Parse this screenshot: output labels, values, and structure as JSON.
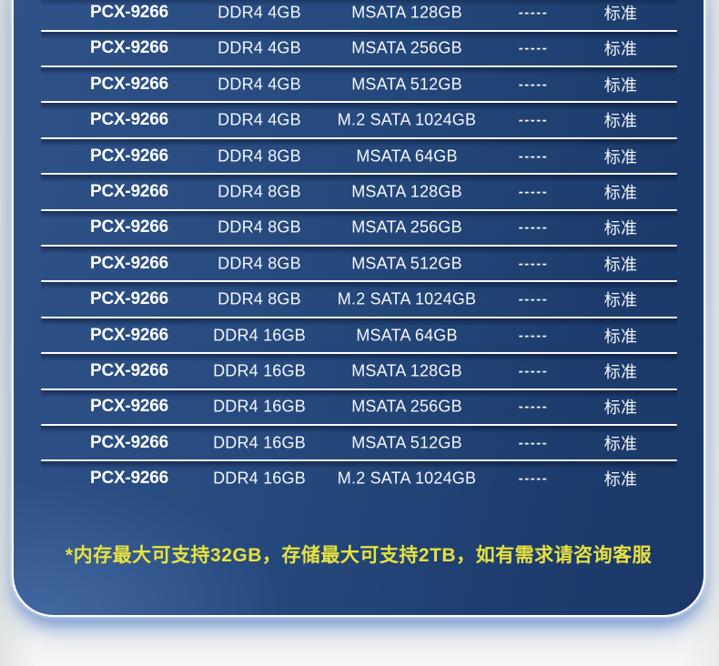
{
  "theme": {
    "panel_gradient": [
      "#2f5289",
      "#264a7e",
      "#1d3c6d",
      "#1b3867"
    ],
    "divider_color": "#fdfeff",
    "row_text_color": "#f4f6f9",
    "note_color": "#e7e23e",
    "page_background": "#f0f2f1"
  },
  "table": {
    "columns": [
      "model",
      "memory",
      "storage",
      "dash",
      "standard"
    ],
    "rows": [
      {
        "model": "PCX-9266",
        "memory": "DDR4 4GB",
        "storage": "MSATA 128GB",
        "dash": "-----",
        "standard": "标准"
      },
      {
        "model": "PCX-9266",
        "memory": "DDR4 4GB",
        "storage": "MSATA 256GB",
        "dash": "-----",
        "standard": "标准"
      },
      {
        "model": "PCX-9266",
        "memory": "DDR4 4GB",
        "storage": "MSATA 512GB",
        "dash": "-----",
        "standard": "标准"
      },
      {
        "model": "PCX-9266",
        "memory": "DDR4 4GB",
        "storage": "M.2 SATA 1024GB",
        "dash": "-----",
        "standard": "标准"
      },
      {
        "model": "PCX-9266",
        "memory": "DDR4 8GB",
        "storage": "MSATA 64GB",
        "dash": "-----",
        "standard": "标准"
      },
      {
        "model": "PCX-9266",
        "memory": "DDR4 8GB",
        "storage": "MSATA 128GB",
        "dash": "-----",
        "standard": "标准"
      },
      {
        "model": "PCX-9266",
        "memory": "DDR4 8GB",
        "storage": "MSATA 256GB",
        "dash": "-----",
        "standard": "标准"
      },
      {
        "model": "PCX-9266",
        "memory": "DDR4 8GB",
        "storage": "MSATA 512GB",
        "dash": "-----",
        "standard": "标准"
      },
      {
        "model": "PCX-9266",
        "memory": "DDR4 8GB",
        "storage": "M.2 SATA 1024GB",
        "dash": "-----",
        "standard": "标准"
      },
      {
        "model": "PCX-9266",
        "memory": "DDR4 16GB",
        "storage": "MSATA 64GB",
        "dash": "-----",
        "standard": "标准"
      },
      {
        "model": "PCX-9266",
        "memory": "DDR4 16GB",
        "storage": "MSATA 128GB",
        "dash": "-----",
        "standard": "标准"
      },
      {
        "model": "PCX-9266",
        "memory": "DDR4 16GB",
        "storage": "MSATA 256GB",
        "dash": "-----",
        "standard": "标准"
      },
      {
        "model": "PCX-9266",
        "memory": "DDR4 16GB",
        "storage": "MSATA 512GB",
        "dash": "-----",
        "standard": "标准"
      },
      {
        "model": "PCX-9266",
        "memory": "DDR4 16GB",
        "storage": "M.2 SATA 1024GB",
        "dash": "-----",
        "standard": "标准"
      }
    ]
  },
  "note": {
    "text": "*内存最大可支持32GB，存储最大可支持2TB，如有需求请咨询客服"
  }
}
